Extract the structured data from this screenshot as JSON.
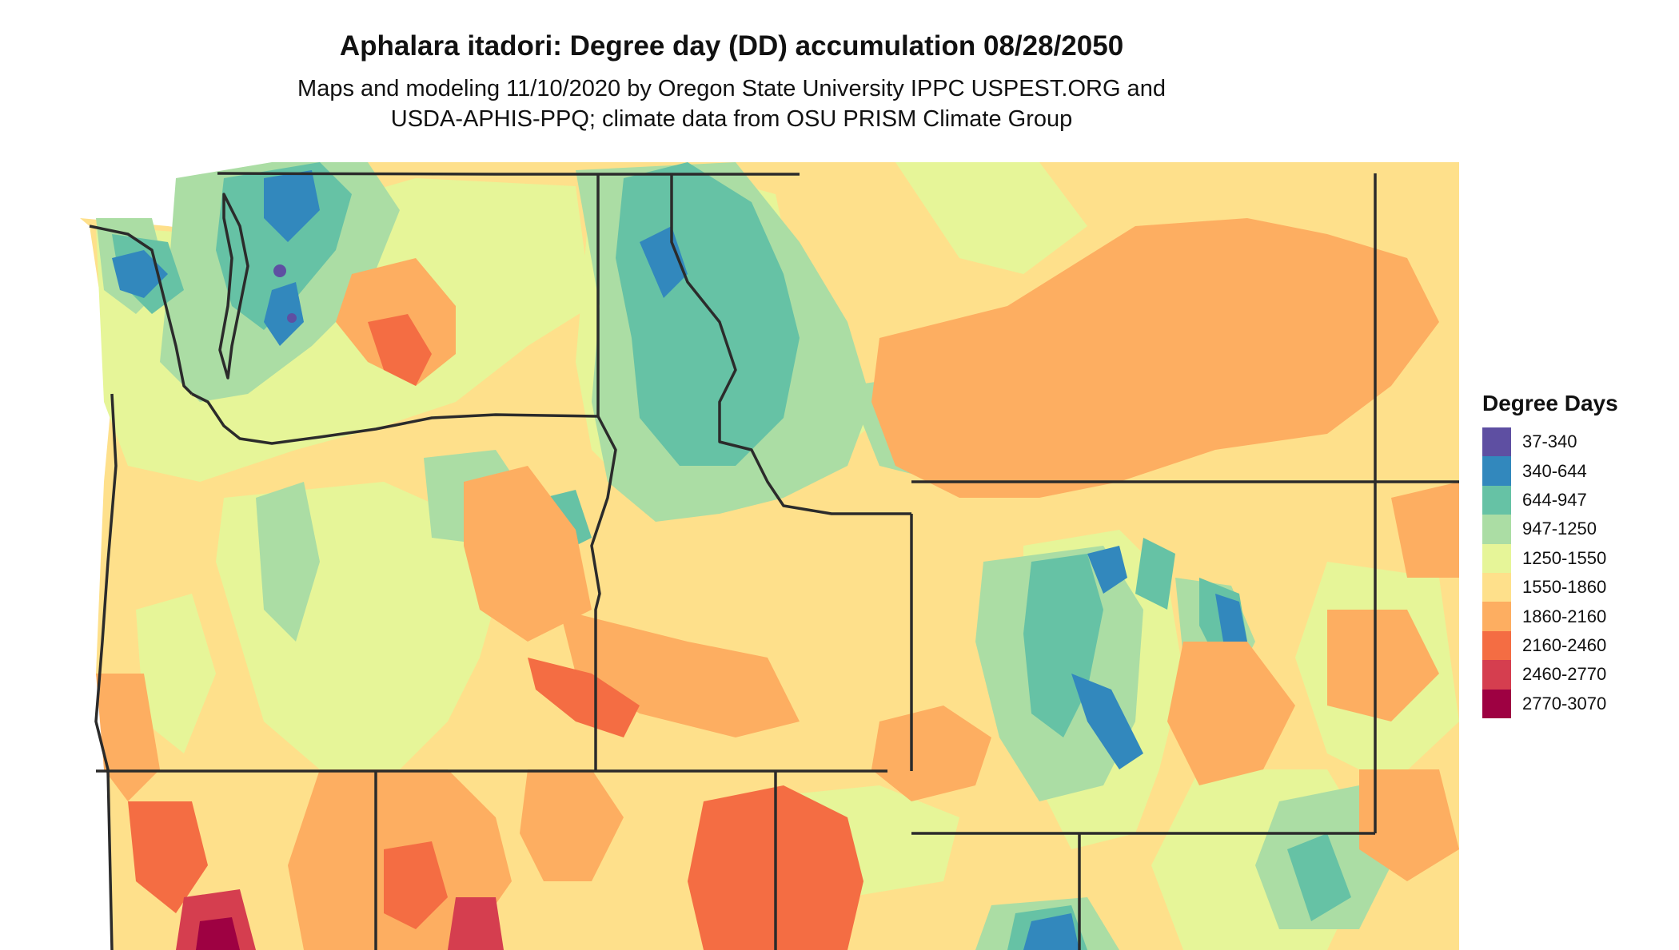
{
  "map": {
    "title": "Aphalara itadori: Degree day (DD) accumulation 08/28/2050",
    "subtitle_line1": "Maps and modeling 11/10/2020 by Oregon State University IPPC USPEST.ORG and",
    "subtitle_line2": "USDA-APHIS-PPQ; climate data from OSU PRISM Climate Group"
  },
  "legend": {
    "title": "Degree Days",
    "items": [
      {
        "label": "37-340",
        "color": "#5e4fa2"
      },
      {
        "label": "340-644",
        "color": "#3288bd"
      },
      {
        "label": "644-947",
        "color": "#66c2a5"
      },
      {
        "label": "947-1250",
        "color": "#abdda4"
      },
      {
        "label": "1250-1550",
        "color": "#e6f598"
      },
      {
        "label": "1550-1860",
        "color": "#fee08b"
      },
      {
        "label": "1860-2160",
        "color": "#fdae61"
      },
      {
        "label": "2160-2460",
        "color": "#f46d43"
      },
      {
        "label": "2460-2770",
        "color": "#d53e4f"
      },
      {
        "label": "2770-3070",
        "color": "#9e0142"
      }
    ]
  }
}
